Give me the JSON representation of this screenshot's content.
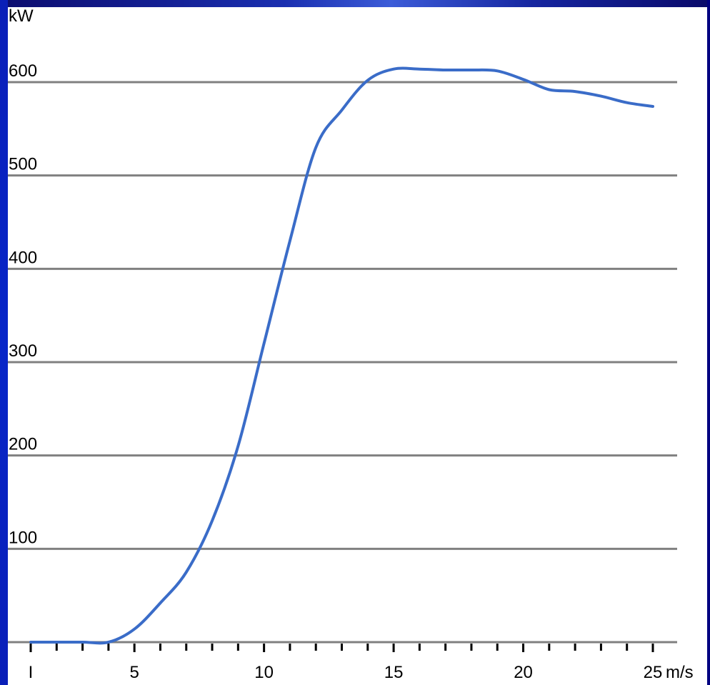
{
  "chart_data": {
    "type": "line",
    "ylabel": "kW",
    "xlabel": "",
    "x_unit": "m/s",
    "xlim": [
      1,
      25
    ],
    "ylim": [
      0,
      600
    ],
    "y_ticks": [
      100,
      200,
      300,
      400,
      500,
      600
    ],
    "y_tick_labels": [
      "100",
      "200",
      "300",
      "400",
      "500",
      "600"
    ],
    "x_major_ticks": [
      1,
      5,
      10,
      15,
      20,
      25
    ],
    "x_tick_labels": [
      "I",
      "5",
      "10",
      "15",
      "20",
      "25"
    ],
    "x_minor_ticks": [
      2,
      3,
      4,
      6,
      7,
      8,
      9,
      11,
      12,
      13,
      14,
      16,
      17,
      18,
      19,
      21,
      22,
      23,
      24
    ],
    "grid": "horizontal",
    "line_color": "#3a6cc8",
    "series": [
      {
        "x": [
          1,
          2,
          3,
          4,
          5,
          6,
          7,
          8,
          9,
          10,
          11,
          12,
          13,
          14,
          15,
          16,
          17,
          18,
          19,
          20,
          21,
          22,
          23,
          24,
          25
        ],
        "values": [
          0,
          0,
          0,
          0,
          14,
          42,
          75,
          130,
          210,
          320,
          430,
          530,
          570,
          602,
          614,
          614,
          613,
          613,
          612,
          603,
          592,
          590,
          585,
          578,
          574
        ]
      }
    ]
  }
}
